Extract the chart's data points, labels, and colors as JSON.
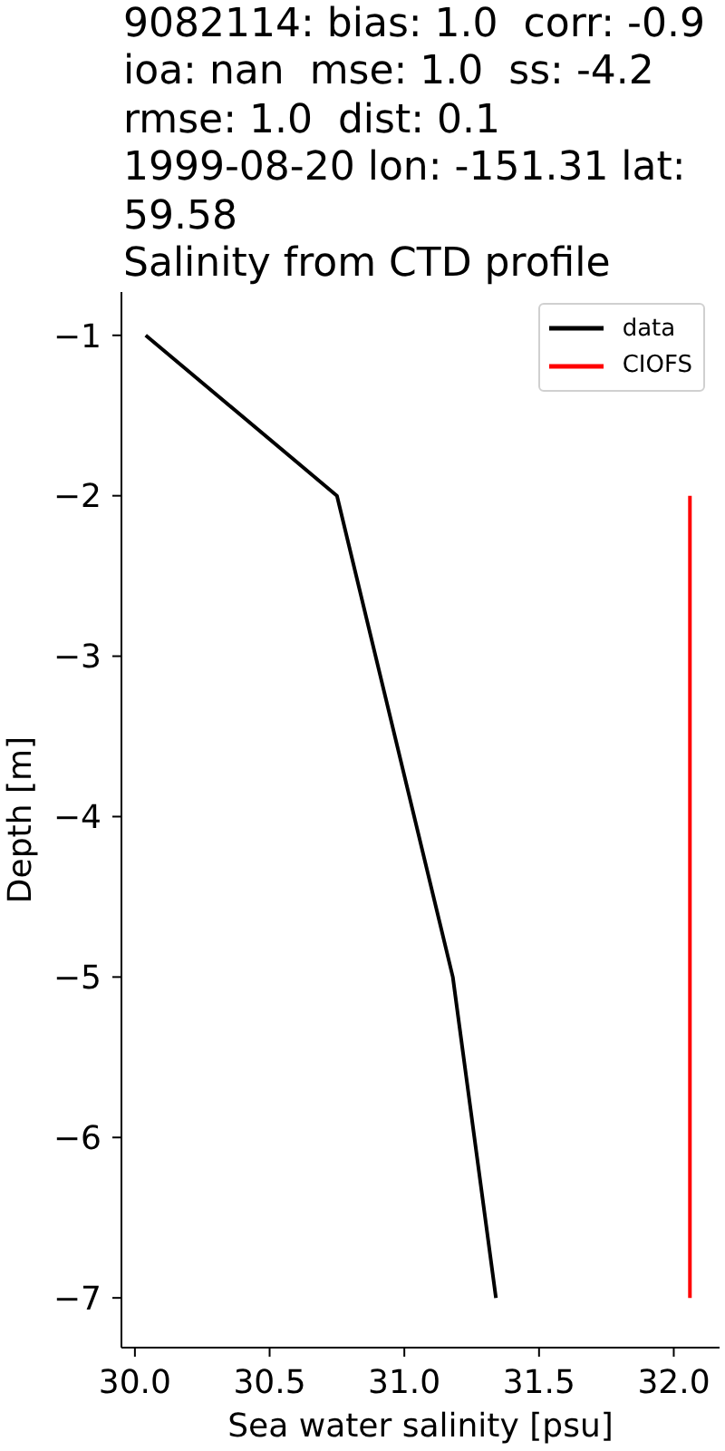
{
  "chart_data": {
    "type": "line",
    "title": "9082114: bias: 1.0  corr: -0.9\nioa: nan  mse: 1.0  ss: -4.2\nrmse: 1.0  dist: 0.1\n1999-08-20 lon: -151.31 lat:\n59.58\nSalinity from CTD profile",
    "xlabel": "Sea water salinity [psu]",
    "ylabel": "Depth [m]",
    "series": [
      {
        "name": "data",
        "color": "#000000",
        "x": [
          30.04,
          30.75,
          31.18,
          31.26,
          31.34
        ],
        "values": [
          -1,
          -2,
          -5,
          -6,
          -7
        ]
      },
      {
        "name": "CIOFS",
        "color": "#ff0000",
        "x": [
          32.06,
          32.06
        ],
        "values": [
          -2,
          -7
        ]
      }
    ],
    "xlim": [
      29.95,
      32.17
    ],
    "xticks": [
      {
        "value": 30,
        "label": "30.0"
      },
      {
        "value": 30.5,
        "label": "30.5"
      },
      {
        "value": 31,
        "label": "31.0"
      },
      {
        "value": 31.5,
        "label": "31.5"
      },
      {
        "value": 32,
        "label": "32.0"
      }
    ],
    "ylim": [
      -7.31,
      -0.73
    ],
    "yticks": [
      {
        "value": -1,
        "label": "−1"
      },
      {
        "value": -2,
        "label": "−2"
      },
      {
        "value": -3,
        "label": "−3"
      },
      {
        "value": -4,
        "label": "−4"
      },
      {
        "value": -5,
        "label": "−5"
      },
      {
        "value": -6,
        "label": "−6"
      },
      {
        "value": -7,
        "label": "−7"
      }
    ],
    "legend": "top right"
  }
}
